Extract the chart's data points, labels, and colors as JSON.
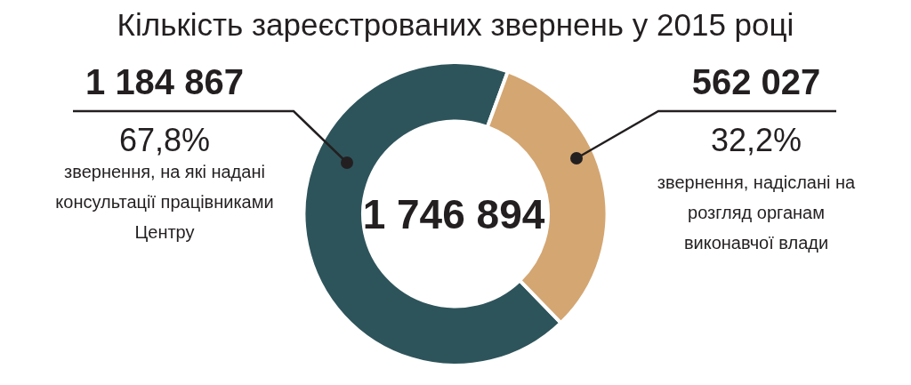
{
  "chart_data": {
    "type": "donut",
    "title": "Кількість зареєстрованих звернень у 2015 році",
    "categories": [
      "звернення, на які надані консультації працівниками Центру",
      "звернення, надіслані на розгляд органам виконавчої влади"
    ],
    "values": [
      1184867,
      562027
    ],
    "colors": [
      "#2e545b",
      "#d4a672"
    ],
    "value_labels": [
      "1 184 867",
      "562 027"
    ],
    "annotations": [
      "67,8%",
      "32,2%",
      "1 746 894"
    ]
  }
}
